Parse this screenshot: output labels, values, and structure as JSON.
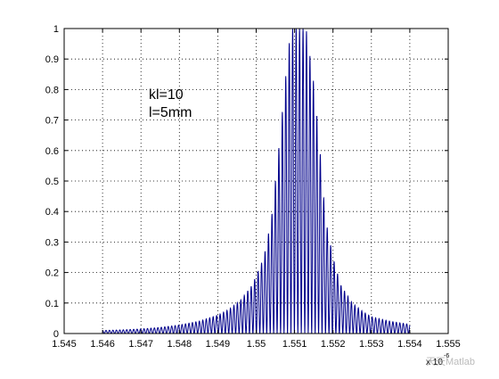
{
  "chart_data": {
    "type": "line",
    "title": "",
    "xlabel": "",
    "ylabel": "",
    "x_exponent_label": "x 10",
    "x_exponent_power": "-6",
    "xlim": [
      1.545,
      1.555
    ],
    "ylim": [
      0,
      1
    ],
    "x_ticks": [
      "1.545",
      "1.546",
      "1.547",
      "1.548",
      "1.549",
      "1.55",
      "1.551",
      "1.552",
      "1.553",
      "1.554",
      "1.555"
    ],
    "y_ticks": [
      "0",
      "0.1",
      "0.2",
      "0.3",
      "0.4",
      "0.5",
      "0.6",
      "0.7",
      "0.8",
      "0.9",
      "1"
    ],
    "grid": true,
    "annotations": [
      "kl=10",
      "l=5mm"
    ],
    "series": [
      {
        "color": "#00008b",
        "fringe_period": 9e-05,
        "x": [
          1.546,
          1.5465,
          1.547,
          1.5475,
          1.548,
          1.5485,
          1.549,
          1.5493,
          1.5496,
          1.5499,
          1.5502,
          1.5504,
          1.5506,
          1.55075,
          1.5509,
          1.551,
          1.5511,
          1.55115,
          1.5513,
          1.5515,
          1.55165,
          1.5518,
          1.552,
          1.5522,
          1.5525,
          1.5528,
          1.553,
          1.5535,
          1.554
        ],
        "y": [
          0.01,
          0.012,
          0.015,
          0.02,
          0.028,
          0.04,
          0.06,
          0.08,
          0.11,
          0.16,
          0.25,
          0.38,
          0.62,
          0.82,
          1.0,
          1.0,
          1.0,
          1.0,
          1.0,
          0.82,
          0.62,
          0.38,
          0.25,
          0.16,
          0.1,
          0.07,
          0.055,
          0.04,
          0.03
        ]
      }
    ]
  },
  "watermark": "天天Matlab"
}
